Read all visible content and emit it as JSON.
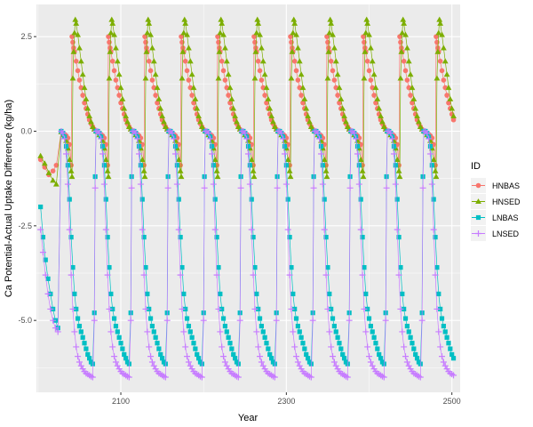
{
  "chart_data": {
    "type": "scatter",
    "xlabel": "Year",
    "ylabel": "Ca Potential-Actual Uptake Difference (kg/ha)",
    "xlim": [
      1998,
      2510
    ],
    "ylim": [
      -6.9,
      3.35
    ],
    "x_ticks": [
      2100,
      2300,
      2500
    ],
    "x_tick_labels": [
      "2100",
      "2300",
      "2500"
    ],
    "y_ticks": [
      2.5,
      0.0,
      -2.5,
      -5.0
    ],
    "y_tick_labels": [
      "2.5",
      "0.0",
      "-2.5",
      "-5.0"
    ],
    "grid": true,
    "legend": {
      "title": "ID",
      "placement": "right",
      "entries": [
        "HNBAS",
        "HNSED",
        "LNBAS",
        "LNSED"
      ]
    },
    "cycle": {
      "period": 44,
      "phase_start_year": 2028
    },
    "series": [
      {
        "name": "HNBAS",
        "color": "#F8766D",
        "shape": "circle",
        "start_year": 2003,
        "initial_segment": [
          [
            2003,
            -0.75
          ],
          [
            2008,
            -0.95
          ],
          [
            2013,
            -1.15
          ],
          [
            2018,
            -1.05
          ],
          [
            2022,
            -0.9
          ]
        ],
        "cycle_profile": [
          [
            0,
            -0.02
          ],
          [
            2,
            -0.05
          ],
          [
            4,
            -0.08
          ],
          [
            6,
            -0.12
          ],
          [
            8,
            -0.18
          ],
          [
            10,
            -0.35
          ],
          [
            12,
            -0.9
          ],
          [
            13,
            2.5
          ],
          [
            14,
            2.35
          ],
          [
            15,
            2.2
          ],
          [
            16,
            2.1
          ],
          [
            18,
            1.85
          ],
          [
            20,
            1.6
          ],
          [
            22,
            1.35
          ],
          [
            24,
            1.15
          ],
          [
            26,
            0.95
          ],
          [
            28,
            0.75
          ],
          [
            30,
            0.6
          ],
          [
            32,
            0.45
          ],
          [
            34,
            0.3
          ],
          [
            36,
            0.2
          ],
          [
            38,
            0.12
          ],
          [
            40,
            0.05
          ],
          [
            42,
            0.0
          ]
        ]
      },
      {
        "name": "HNSED",
        "color": "#7CAE00",
        "shape": "triangle",
        "start_year": 2003,
        "initial_segment": [
          [
            2003,
            -0.65
          ],
          [
            2008,
            -0.85
          ],
          [
            2013,
            -1.1
          ],
          [
            2018,
            -1.3
          ],
          [
            2022,
            -1.4
          ]
        ],
        "cycle_profile": [
          [
            0,
            -0.02
          ],
          [
            2,
            -0.1
          ],
          [
            4,
            -0.15
          ],
          [
            6,
            -0.25
          ],
          [
            8,
            -0.45
          ],
          [
            10,
            -0.75
          ],
          [
            12,
            -1.05
          ],
          [
            13,
            -1.2
          ],
          [
            14,
            1.4
          ],
          [
            15,
            2.1
          ],
          [
            16,
            2.6
          ],
          [
            17,
            2.95
          ],
          [
            18,
            2.85
          ],
          [
            20,
            2.55
          ],
          [
            22,
            2.2
          ],
          [
            24,
            1.85
          ],
          [
            26,
            1.5
          ],
          [
            28,
            1.15
          ],
          [
            30,
            0.85
          ],
          [
            32,
            0.6
          ],
          [
            34,
            0.4
          ],
          [
            36,
            0.25
          ],
          [
            38,
            0.12
          ],
          [
            40,
            0.05
          ],
          [
            42,
            0.0
          ]
        ]
      },
      {
        "name": "LNBAS",
        "color": "#00BFC4",
        "shape": "square",
        "start_year": 2003,
        "initial_segment": [
          [
            2003,
            -2.0
          ],
          [
            2006,
            -2.8
          ],
          [
            2009,
            -3.4
          ],
          [
            2012,
            -3.9
          ],
          [
            2015,
            -4.3
          ],
          [
            2018,
            -4.7
          ],
          [
            2021,
            -5.0
          ],
          [
            2024,
            -5.2
          ]
        ],
        "cycle_profile": [
          [
            0,
            0.0
          ],
          [
            2,
            -0.05
          ],
          [
            4,
            -0.15
          ],
          [
            6,
            -0.4
          ],
          [
            8,
            -0.9
          ],
          [
            10,
            -1.8
          ],
          [
            12,
            -2.8
          ],
          [
            14,
            -3.6
          ],
          [
            16,
            -4.3
          ],
          [
            18,
            -4.7
          ],
          [
            20,
            -4.95
          ],
          [
            22,
            -5.15
          ],
          [
            24,
            -5.3
          ],
          [
            26,
            -5.45
          ],
          [
            28,
            -5.6
          ],
          [
            30,
            -5.75
          ],
          [
            32,
            -5.9
          ],
          [
            34,
            -6.0
          ],
          [
            36,
            -6.1
          ],
          [
            38,
            -6.15
          ],
          [
            40,
            -4.8
          ],
          [
            41,
            -1.2
          ],
          [
            42,
            0.0
          ]
        ]
      },
      {
        "name": "LNSED",
        "color": "#C77CFF",
        "shape": "plus",
        "start_year": 2003,
        "initial_segment": [
          [
            2003,
            -2.6
          ],
          [
            2006,
            -3.2
          ],
          [
            2009,
            -3.8
          ],
          [
            2012,
            -4.3
          ],
          [
            2015,
            -4.7
          ],
          [
            2018,
            -5.0
          ],
          [
            2021,
            -5.2
          ],
          [
            2024,
            -5.3
          ]
        ],
        "cycle_profile": [
          [
            0,
            0.0
          ],
          [
            2,
            -0.05
          ],
          [
            4,
            -0.2
          ],
          [
            6,
            -0.6
          ],
          [
            8,
            -1.4
          ],
          [
            10,
            -2.6
          ],
          [
            12,
            -3.8
          ],
          [
            14,
            -4.7
          ],
          [
            16,
            -5.3
          ],
          [
            18,
            -5.7
          ],
          [
            20,
            -5.95
          ],
          [
            22,
            -6.1
          ],
          [
            24,
            -6.2
          ],
          [
            26,
            -6.28
          ],
          [
            28,
            -6.35
          ],
          [
            30,
            -6.4
          ],
          [
            32,
            -6.42
          ],
          [
            34,
            -6.45
          ],
          [
            36,
            -6.48
          ],
          [
            38,
            -6.5
          ],
          [
            40,
            -5.0
          ],
          [
            41,
            -1.5
          ],
          [
            42,
            0.0
          ]
        ]
      }
    ]
  }
}
